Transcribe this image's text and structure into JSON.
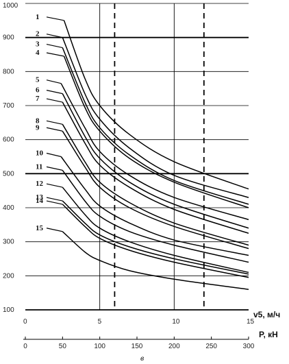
{
  "chart_data": {
    "type": "line",
    "xlabel_top": "v5, м/ч",
    "xlabel_bottom": "P, кН",
    "subcaption": "в",
    "x_top": {
      "range": [
        0,
        15
      ],
      "ticks": [
        "0",
        "5",
        "10",
        "15"
      ]
    },
    "x_bottom": {
      "range": [
        0,
        300
      ],
      "ticks": [
        "0",
        "50",
        "100",
        "150",
        "200",
        "250",
        "300"
      ]
    },
    "y": {
      "range": [
        100,
        1000
      ],
      "ticks": [
        "100",
        "200",
        "300",
        "400",
        "500",
        "600",
        "700",
        "800",
        "900",
        "1000"
      ]
    },
    "heavy_gridlines_y": [
      500,
      900
    ],
    "dashed_vlines_x": [
      6,
      12
    ],
    "solid_vlines_x": [
      5,
      10
    ],
    "series": [
      {
        "name": "1",
        "points": [
          [
            2.6,
            950
          ],
          [
            4,
            780
          ],
          [
            5,
            700
          ],
          [
            7,
            615
          ],
          [
            10,
            535
          ],
          [
            15,
            455
          ]
        ]
      },
      {
        "name": "2",
        "points": [
          [
            2.5,
            900
          ],
          [
            4,
            735
          ],
          [
            5,
            660
          ],
          [
            7,
            575
          ],
          [
            10,
            495
          ],
          [
            15,
            430
          ]
        ]
      },
      {
        "name": "3",
        "points": [
          [
            2.5,
            870
          ],
          [
            4,
            710
          ],
          [
            5,
            635
          ],
          [
            7,
            555
          ],
          [
            10,
            480
          ],
          [
            15,
            410
          ]
        ]
      },
      {
        "name": "4",
        "points": [
          [
            2.6,
            845
          ],
          [
            4,
            695
          ],
          [
            5,
            625
          ],
          [
            7,
            545
          ],
          [
            10,
            475
          ],
          [
            15,
            400
          ]
        ]
      },
      {
        "name": "5",
        "points": [
          [
            2.4,
            765
          ],
          [
            4,
            635
          ],
          [
            5,
            565
          ],
          [
            7,
            495
          ],
          [
            10,
            430
          ],
          [
            15,
            365
          ]
        ]
      },
      {
        "name": "6",
        "points": [
          [
            2.5,
            735
          ],
          [
            4,
            610
          ],
          [
            5,
            545
          ],
          [
            7,
            475
          ],
          [
            10,
            410
          ],
          [
            15,
            340
          ]
        ]
      },
      {
        "name": "7",
        "points": [
          [
            2.5,
            710
          ],
          [
            4,
            590
          ],
          [
            5,
            525
          ],
          [
            7,
            460
          ],
          [
            10,
            395
          ],
          [
            15,
            325
          ]
        ]
      },
      {
        "name": "8",
        "points": [
          [
            2.5,
            645
          ],
          [
            4,
            535
          ],
          [
            5,
            475
          ],
          [
            7,
            415
          ],
          [
            10,
            355
          ],
          [
            15,
            290
          ]
        ]
      },
      {
        "name": "9",
        "points": [
          [
            2.5,
            625
          ],
          [
            4,
            520
          ],
          [
            5,
            460
          ],
          [
            7,
            400
          ],
          [
            10,
            345
          ],
          [
            15,
            280
          ]
        ]
      },
      {
        "name": "10",
        "points": [
          [
            2.4,
            550
          ],
          [
            4,
            455
          ],
          [
            5,
            405
          ],
          [
            7,
            355
          ],
          [
            10,
            305
          ],
          [
            15,
            260
          ]
        ]
      },
      {
        "name": "11",
        "points": [
          [
            2.5,
            510
          ],
          [
            4,
            420
          ],
          [
            5,
            375
          ],
          [
            7,
            330
          ],
          [
            10,
            290
          ],
          [
            15,
            240
          ]
        ]
      },
      {
        "name": "12",
        "points": [
          [
            2.5,
            460
          ],
          [
            4,
            380
          ],
          [
            5,
            340
          ],
          [
            7,
            300
          ],
          [
            10,
            260
          ],
          [
            15,
            210
          ]
        ]
      },
      {
        "name": "13",
        "points": [
          [
            2.5,
            420
          ],
          [
            4,
            355
          ],
          [
            5,
            320
          ],
          [
            7,
            285
          ],
          [
            10,
            250
          ],
          [
            15,
            205
          ]
        ]
      },
      {
        "name": "14",
        "points": [
          [
            2.5,
            410
          ],
          [
            4,
            345
          ],
          [
            5,
            310
          ],
          [
            7,
            275
          ],
          [
            10,
            240
          ],
          [
            15,
            195
          ]
        ]
      },
      {
        "name": "15",
        "points": [
          [
            2.5,
            330
          ],
          [
            4,
            270
          ],
          [
            5,
            245
          ],
          [
            7,
            215
          ],
          [
            10,
            190
          ],
          [
            15,
            160
          ]
        ]
      }
    ]
  }
}
